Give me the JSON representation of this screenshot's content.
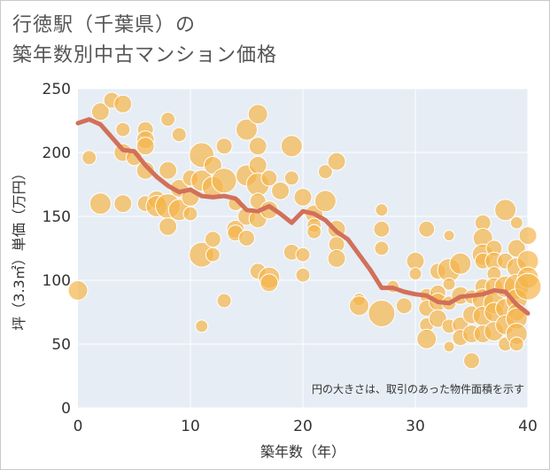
{
  "title_lines": [
    "行徳駅（千葉県）の",
    "築年数別中古マンション価格"
  ],
  "colors": {
    "bubble": "#f5b54a",
    "bubble_stroke": "#ffffff",
    "line": "#d2705a",
    "plot_bg": "#e6edf5",
    "grid": "#ffffff"
  },
  "chart_data": {
    "type": "scatter",
    "title": "行徳駅（千葉県）の築年数別中古マンション価格",
    "xlabel": "築年数（年）",
    "ylabel": "坪（3.3㎡）単価（万円）",
    "xlim": [
      0,
      40
    ],
    "ylim": [
      0,
      250
    ],
    "xticks": [
      0,
      10,
      20,
      30,
      40
    ],
    "yticks": [
      0,
      50,
      100,
      150,
      200,
      250
    ],
    "grid": true,
    "annotation": "円の大きさは、取引のあった物件面積を示す",
    "series": [
      {
        "type": "bubble",
        "points": [
          [
            0,
            92,
            11
          ],
          [
            1,
            196,
            8
          ],
          [
            2,
            232,
            10
          ],
          [
            2,
            160,
            12
          ],
          [
            3,
            241,
            9
          ],
          [
            4,
            238,
            10
          ],
          [
            4,
            218,
            8
          ],
          [
            4,
            200,
            10
          ],
          [
            4,
            160,
            10
          ],
          [
            5,
            196,
            9
          ],
          [
            6,
            218,
            9
          ],
          [
            6,
            210,
            10
          ],
          [
            6,
            205,
            10
          ],
          [
            6,
            186,
            10
          ],
          [
            6,
            160,
            9
          ],
          [
            7,
            163,
            10
          ],
          [
            7,
            158,
            12
          ],
          [
            8,
            226,
            8
          ],
          [
            8,
            186,
            10
          ],
          [
            8,
            158,
            14
          ],
          [
            8,
            142,
            10
          ],
          [
            9,
            214,
            8
          ],
          [
            9,
            172,
            10
          ],
          [
            9,
            155,
            12
          ],
          [
            10,
            180,
            9
          ],
          [
            10,
            165,
            10
          ],
          [
            10,
            152,
            8
          ],
          [
            11,
            198,
            14
          ],
          [
            11,
            178,
            12
          ],
          [
            11,
            120,
            14
          ],
          [
            11,
            64,
            7
          ],
          [
            12,
            190,
            10
          ],
          [
            12,
            173,
            12
          ],
          [
            12,
            132,
            9
          ],
          [
            12,
            120,
            8
          ],
          [
            13,
            205,
            9
          ],
          [
            13,
            178,
            14
          ],
          [
            13,
            84,
            8
          ],
          [
            14,
            140,
            10
          ],
          [
            14,
            137,
            9
          ],
          [
            14,
            160,
            8
          ],
          [
            15,
            218,
            12
          ],
          [
            15,
            182,
            12
          ],
          [
            15,
            150,
            10
          ],
          [
            15,
            133,
            9
          ],
          [
            16,
            230,
            11
          ],
          [
            16,
            205,
            10
          ],
          [
            16,
            190,
            10
          ],
          [
            16,
            175,
            13
          ],
          [
            16,
            162,
            9
          ],
          [
            16,
            148,
            10
          ],
          [
            16,
            107,
            9
          ],
          [
            17,
            180,
            9
          ],
          [
            17,
            155,
            10
          ],
          [
            17,
            102,
            12
          ],
          [
            17,
            98,
            10
          ],
          [
            18,
            170,
            10
          ],
          [
            19,
            205,
            12
          ],
          [
            19,
            180,
            8
          ],
          [
            19,
            122,
            9
          ],
          [
            20,
            165,
            10
          ],
          [
            20,
            120,
            8
          ],
          [
            20,
            104,
            8
          ],
          [
            21,
            152,
            10
          ],
          [
            21,
            143,
            8
          ],
          [
            21,
            138,
            8
          ],
          [
            22,
            185,
            8
          ],
          [
            22,
            162,
            12
          ],
          [
            23,
            193,
            10
          ],
          [
            23,
            140,
            10
          ],
          [
            23,
            128,
            9
          ],
          [
            23,
            117,
            10
          ],
          [
            25,
            85,
            7
          ],
          [
            25,
            80,
            11
          ],
          [
            27,
            155,
            7
          ],
          [
            27,
            140,
            9
          ],
          [
            27,
            125,
            8
          ],
          [
            27,
            74,
            15
          ],
          [
            28,
            95,
            7
          ],
          [
            29,
            80,
            9
          ],
          [
            30,
            115,
            10
          ],
          [
            30,
            105,
            7
          ],
          [
            31,
            140,
            9
          ],
          [
            31,
            88,
            8
          ],
          [
            31,
            78,
            9
          ],
          [
            31,
            65,
            8
          ],
          [
            31,
            54,
            11
          ],
          [
            32,
            107,
            9
          ],
          [
            32,
            90,
            9
          ],
          [
            32,
            83,
            10
          ],
          [
            32,
            70,
            10
          ],
          [
            33,
            135,
            6
          ],
          [
            33,
            108,
            13
          ],
          [
            33,
            97,
            7
          ],
          [
            33,
            82,
            8
          ],
          [
            33,
            64,
            8
          ],
          [
            33,
            48,
            6
          ],
          [
            34,
            113,
            12
          ],
          [
            34,
            88,
            10
          ],
          [
            34,
            65,
            9
          ],
          [
            34,
            55,
            9
          ],
          [
            35,
            87,
            8
          ],
          [
            35,
            73,
            10
          ],
          [
            35,
            58,
            10
          ],
          [
            35,
            37,
            9
          ],
          [
            36,
            145,
            9
          ],
          [
            36,
            133,
            11
          ],
          [
            36,
            120,
            12
          ],
          [
            36,
            115,
            9
          ],
          [
            36,
            95,
            9
          ],
          [
            36,
            85,
            12
          ],
          [
            36,
            72,
            11
          ],
          [
            36,
            58,
            10
          ],
          [
            37,
            125,
            9
          ],
          [
            37,
            115,
            10
          ],
          [
            37,
            105,
            8
          ],
          [
            37,
            95,
            10
          ],
          [
            37,
            82,
            12
          ],
          [
            37,
            75,
            11
          ],
          [
            37,
            60,
            11
          ],
          [
            38,
            155,
            12
          ],
          [
            38,
            115,
            9
          ],
          [
            38,
            95,
            12
          ],
          [
            38,
            78,
            11
          ],
          [
            38,
            65,
            11
          ],
          [
            38,
            50,
            8
          ],
          [
            39,
            145,
            7
          ],
          [
            39,
            125,
            10
          ],
          [
            39,
            110,
            11
          ],
          [
            39,
            95,
            14
          ],
          [
            39,
            85,
            12
          ],
          [
            39,
            75,
            10
          ],
          [
            39,
            70,
            12
          ],
          [
            39,
            58,
            12
          ],
          [
            39,
            50,
            8
          ],
          [
            40,
            135,
            10
          ],
          [
            40,
            115,
            12
          ],
          [
            40,
            102,
            12
          ],
          [
            40,
            95,
            15
          ]
        ]
      },
      {
        "type": "line",
        "points": [
          [
            0,
            223
          ],
          [
            1,
            226
          ],
          [
            2,
            222
          ],
          [
            3,
            212
          ],
          [
            4,
            202
          ],
          [
            5,
            201
          ],
          [
            6,
            190
          ],
          [
            7,
            181
          ],
          [
            8,
            174
          ],
          [
            9,
            169
          ],
          [
            10,
            171
          ],
          [
            11,
            166
          ],
          [
            12,
            165
          ],
          [
            13,
            166
          ],
          [
            14,
            164
          ],
          [
            15,
            155
          ],
          [
            16,
            154
          ],
          [
            17,
            158
          ],
          [
            18,
            152
          ],
          [
            19,
            145
          ],
          [
            20,
            154
          ],
          [
            21,
            152
          ],
          [
            22,
            147
          ],
          [
            23,
            138
          ],
          [
            24,
            132
          ],
          [
            25,
            120
          ],
          [
            26,
            108
          ],
          [
            27,
            94
          ],
          [
            28,
            94
          ],
          [
            29,
            91
          ],
          [
            30,
            89
          ],
          [
            31,
            88
          ],
          [
            32,
            83
          ],
          [
            33,
            82
          ],
          [
            34,
            87
          ],
          [
            35,
            88
          ],
          [
            36,
            89
          ],
          [
            37,
            92
          ],
          [
            38,
            91
          ],
          [
            39,
            81
          ],
          [
            40,
            74
          ]
        ]
      }
    ]
  }
}
